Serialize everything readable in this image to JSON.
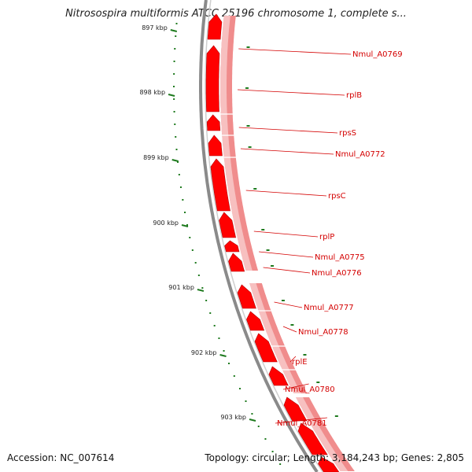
{
  "title": "Nitrosospira multiformis ATCC 25196 chromosome 1, complete s...",
  "accession": "Accession: NC_007614",
  "topology": "Topology: circular; Length: 3,184,243 bp; Genes: 2,805",
  "colors": {
    "backbone": "#8a8a8a",
    "gene": "#ff0000",
    "gene_edge": "#b40000",
    "gene_highlight": "#ff9090",
    "track2": "#f08c8c",
    "track2_light": "#f7c0c0",
    "scale": "#1e7a1e",
    "label": "#d40000"
  },
  "scale_ticks": [
    {
      "label": "897 kbp",
      "kbp": 897
    },
    {
      "label": "898 kbp",
      "kbp": 898
    },
    {
      "label": "899 kbp",
      "kbp": 899
    },
    {
      "label": "900 kbp",
      "kbp": 900
    },
    {
      "label": "901 kbp",
      "kbp": 901
    },
    {
      "label": "902 kbp",
      "kbp": 902
    },
    {
      "label": "903 kbp",
      "kbp": 903
    }
  ],
  "genes": [
    {
      "name": "Nmul_A0769"
    },
    {
      "name": "rplB"
    },
    {
      "name": "rpsS"
    },
    {
      "name": "Nmul_A0772"
    },
    {
      "name": "rpsC"
    },
    {
      "name": "rplP"
    },
    {
      "name": "Nmul_A0775"
    },
    {
      "name": "Nmul_A0776"
    },
    {
      "name": "Nmul_A0777"
    },
    {
      "name": "Nmul_A0778"
    },
    {
      "name": "rplE"
    },
    {
      "name": "Nmul_A0780"
    },
    {
      "name": "Nmul_A0781"
    }
  ]
}
